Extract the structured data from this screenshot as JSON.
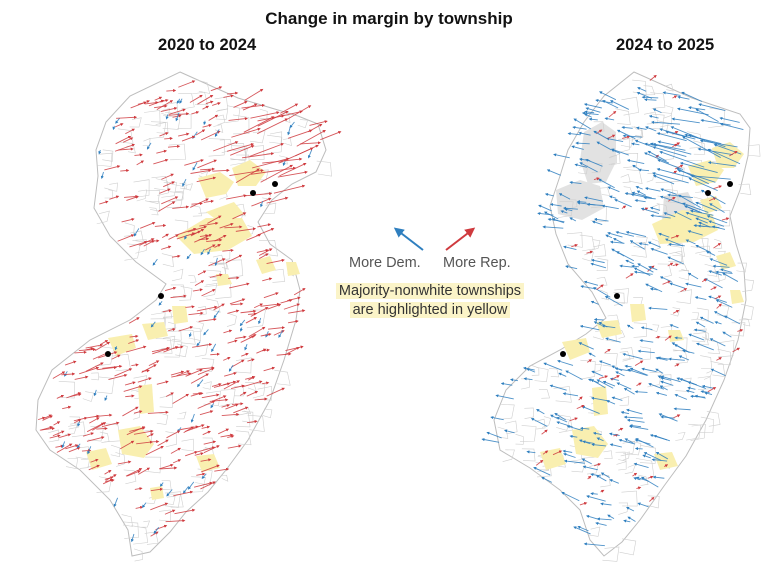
{
  "title": "Change in margin by township",
  "panels": [
    {
      "label": "2020 to 2024",
      "dominant_shift": "rep"
    },
    {
      "label": "2024 to 2025",
      "dominant_shift": "dem"
    }
  ],
  "legend": {
    "dem_label": "More Dem.",
    "rep_label": "More Rep.",
    "dem_color": "#2f7fbf",
    "rep_color": "#cf3a3e",
    "note": "Majority-nonwhite townships are highlighted in yellow",
    "highlight_color": "#fbf4c8"
  },
  "map_colors": {
    "township_border": "#cfcfcf",
    "highlight_fill": "#f9efb0",
    "no_data_fill": "#e2e2e2",
    "city_marker": "#000000"
  }
}
